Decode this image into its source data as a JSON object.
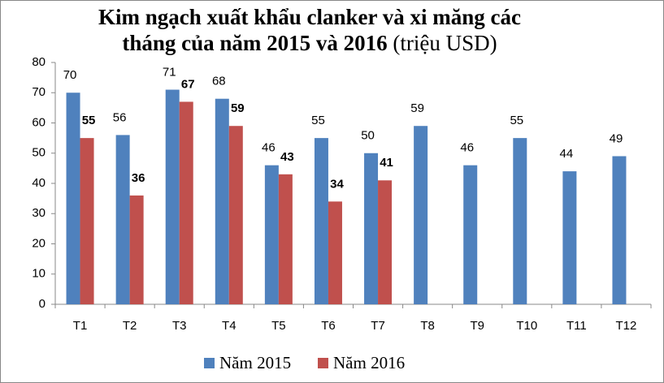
{
  "chart_data": {
    "type": "bar",
    "title": "Kim ngạch xuất khẩu clanker và xi măng các tháng của năm 2015 và 2016",
    "subtitle": "(triệu USD)",
    "categories": [
      "T1",
      "T2",
      "T3",
      "T4",
      "T5",
      "T6",
      "T7",
      "T8",
      "T9",
      "T10",
      "T11",
      "T12"
    ],
    "series": [
      {
        "name": "Năm 2015",
        "color": "#4f81bd",
        "values": [
          70,
          56,
          71,
          68,
          46,
          55,
          50,
          59,
          46,
          55,
          44,
          49
        ]
      },
      {
        "name": "Năm 2016",
        "color": "#c0504d",
        "values": [
          55,
          36,
          67,
          59,
          43,
          34,
          41,
          null,
          null,
          null,
          null,
          null
        ]
      }
    ],
    "ylim": [
      0,
      80
    ],
    "yticks": [
      0,
      10,
      20,
      30,
      40,
      50,
      60,
      70,
      80
    ],
    "grid": false,
    "legend": "bottom"
  }
}
